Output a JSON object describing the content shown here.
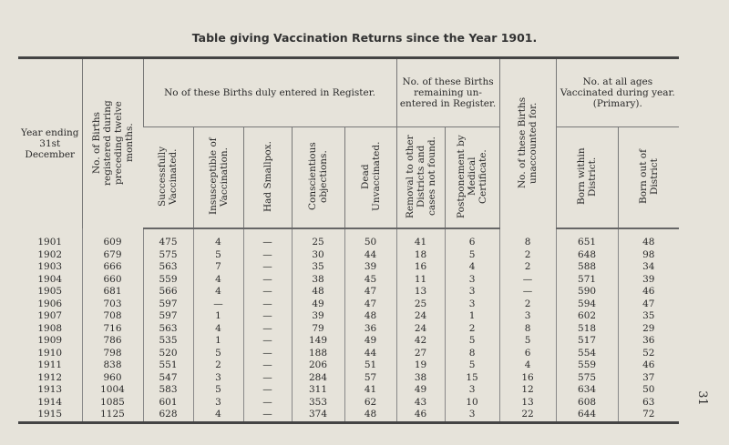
{
  "title": "Table giving Vaccination Returns since the Year 1901.",
  "headers": {
    "year": "Year ending 31st December",
    "births": "No. of Births registered during preceding twelve months.",
    "group_entered": "No of these Births duly entered in Register.",
    "group_unentered": "No. of these Births remaining un-entered in Register.",
    "unaccounted": "No. of these Births unaccounted for.",
    "group_all_ages": "No. at all ages Vaccinated during year. (Primary).",
    "sub": [
      "Successfully Vaccinated.",
      "Insusceptible of Vaccination.",
      "Had Smallpox.",
      "Conscientious objections.",
      "Dead Unvaccinated.",
      "Removal to other Districts and cases not found.",
      "Postponement by Medical Certificate.",
      "Born within District.",
      "Born out of District"
    ]
  },
  "rows": [
    [
      "1901",
      "609",
      "475",
      "4",
      "—",
      "25",
      "50",
      "41",
      "6",
      "8",
      "651",
      "48"
    ],
    [
      "1902",
      "679",
      "575",
      "5",
      "—",
      "30",
      "44",
      "18",
      "5",
      "2",
      "648",
      "98"
    ],
    [
      "1903",
      "666",
      "563",
      "7",
      "—",
      "35",
      "39",
      "16",
      "4",
      "2",
      "588",
      "34"
    ],
    [
      "1904",
      "660",
      "559",
      "4",
      "—",
      "38",
      "45",
      "11",
      "3",
      "—",
      "571",
      "39"
    ],
    [
      "1905",
      "681",
      "566",
      "4",
      "—",
      "48",
      "47",
      "13",
      "3",
      "—",
      "590",
      "46"
    ],
    [
      "1906",
      "703",
      "597",
      "—",
      "—",
      "49",
      "47",
      "25",
      "3",
      "2",
      "594",
      "47"
    ],
    [
      "1907",
      "708",
      "597",
      "1",
      "—",
      "39",
      "48",
      "24",
      "1",
      "3",
      "602",
      "35"
    ],
    [
      "1908",
      "716",
      "563",
      "4",
      "—",
      "79",
      "36",
      "24",
      "2",
      "8",
      "518",
      "29"
    ],
    [
      "1909",
      "786",
      "535",
      "1",
      "—",
      "149",
      "49",
      "42",
      "5",
      "5",
      "517",
      "36"
    ],
    [
      "1910",
      "798",
      "520",
      "5",
      "—",
      "188",
      "44",
      "27",
      "8",
      "6",
      "554",
      "52"
    ],
    [
      "1911",
      "838",
      "551",
      "2",
      "—",
      "206",
      "51",
      "19",
      "5",
      "4",
      "559",
      "46"
    ],
    [
      "1912",
      "960",
      "547",
      "3",
      "—",
      "284",
      "57",
      "38",
      "15",
      "16",
      "575",
      "37"
    ],
    [
      "1913",
      "1004",
      "583",
      "5",
      "—",
      "311",
      "41",
      "49",
      "3",
      "12",
      "634",
      "50"
    ],
    [
      "1914",
      "1085",
      "601",
      "3",
      "—",
      "353",
      "62",
      "43",
      "10",
      "13",
      "608",
      "63"
    ],
    [
      "1915",
      "1125",
      "628",
      "4",
      "—",
      "374",
      "48",
      "46",
      "3",
      "22",
      "644",
      "72"
    ]
  ],
  "page_number": "31"
}
